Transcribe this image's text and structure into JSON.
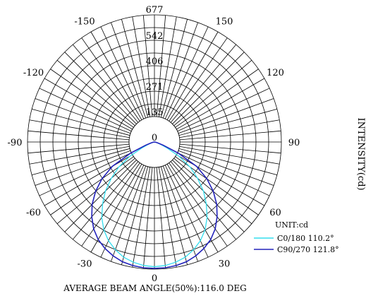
{
  "chart_data": {
    "type": "polar",
    "ylabel": "INTENSITY(cd)",
    "footer": "AVERAGE BEAM ANGLE(50%):116.0 DEG",
    "unit_label": "UNIT:cd",
    "radial_max": 677,
    "radial_ticks": [
      {
        "value": 0,
        "label": "0"
      },
      {
        "value": 135,
        "label": "135"
      },
      {
        "value": 271,
        "label": "271"
      },
      {
        "value": 406,
        "label": "406"
      },
      {
        "value": 542,
        "label": "542"
      },
      {
        "value": 677,
        "label": "677"
      }
    ],
    "angle_ticks": [
      {
        "value": -150,
        "label": "-150"
      },
      {
        "value": 150,
        "label": "150"
      },
      {
        "value": -120,
        "label": "-120"
      },
      {
        "value": 120,
        "label": "120"
      },
      {
        "value": -90,
        "label": "-90"
      },
      {
        "value": 90,
        "label": "90"
      },
      {
        "value": -60,
        "label": "-60"
      },
      {
        "value": 60,
        "label": "60"
      },
      {
        "value": -30,
        "label": "-30"
      },
      {
        "value": 30,
        "label": "30"
      },
      {
        "value": 0,
        "label": "0"
      }
    ],
    "angle_step_deg": 5,
    "series": [
      {
        "name": "C0/180 110.2°",
        "color": "#33ddee",
        "angles": [
          -90,
          -85,
          -80,
          -75,
          -70,
          -65,
          -60,
          -55,
          -50,
          -45,
          -40,
          -35,
          -30,
          -25,
          -20,
          -15,
          -10,
          -5,
          0,
          5,
          10,
          15,
          20,
          25,
          30,
          35,
          40,
          45,
          50,
          55,
          60,
          65,
          70,
          75,
          80,
          85,
          90
        ],
        "values": [
          0,
          2,
          5,
          12,
          30,
          70,
          150,
          232,
          300,
          370,
          430,
          490,
          540,
          580,
          610,
          635,
          650,
          660,
          664,
          660,
          650,
          635,
          610,
          580,
          540,
          490,
          430,
          370,
          300,
          232,
          150,
          70,
          30,
          12,
          5,
          2,
          0
        ]
      },
      {
        "name": "C90/270 121.8°",
        "color": "#2222bb",
        "angles": [
          -90,
          -85,
          -80,
          -75,
          -70,
          -65,
          -60,
          -55,
          -50,
          -45,
          -40,
          -35,
          -30,
          -25,
          -20,
          -15,
          -10,
          -5,
          0,
          5,
          10,
          15,
          20,
          25,
          30,
          35,
          40,
          45,
          50,
          55,
          60,
          65,
          70,
          75,
          80,
          85,
          90
        ],
        "values": [
          0,
          2,
          6,
          18,
          50,
          140,
          260,
          342,
          410,
          470,
          520,
          565,
          600,
          625,
          645,
          660,
          668,
          672,
          673,
          672,
          668,
          660,
          645,
          625,
          600,
          565,
          520,
          470,
          410,
          342,
          260,
          140,
          50,
          18,
          6,
          2,
          0
        ]
      }
    ]
  }
}
